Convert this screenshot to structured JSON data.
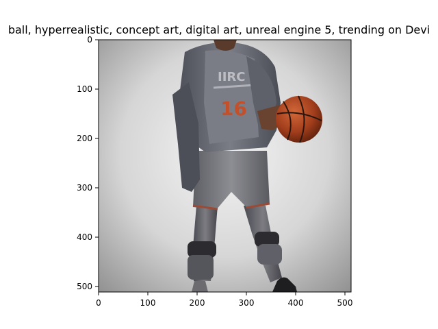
{
  "title": "ball,  hyperrealistic, concept art, digital art, unreal engine 5, trending on Devi",
  "image_description_hidden": "",
  "axes": {
    "x_ticks": [
      "0",
      "100",
      "200",
      "300",
      "400",
      "500"
    ],
    "y_ticks": [
      "0",
      "100",
      "200",
      "300",
      "400",
      "500"
    ],
    "xlim": [
      0,
      512
    ],
    "ylim": [
      512,
      0
    ]
  },
  "colors": {
    "background_light": "#efefef",
    "background_dark": "#8e8e8e",
    "jersey": "#6d6f78",
    "jacket": "#5a5c66",
    "shorts": "#7a7b80",
    "ball": "#a8411f",
    "skin": "#6a4330",
    "number": "#c2502b"
  }
}
